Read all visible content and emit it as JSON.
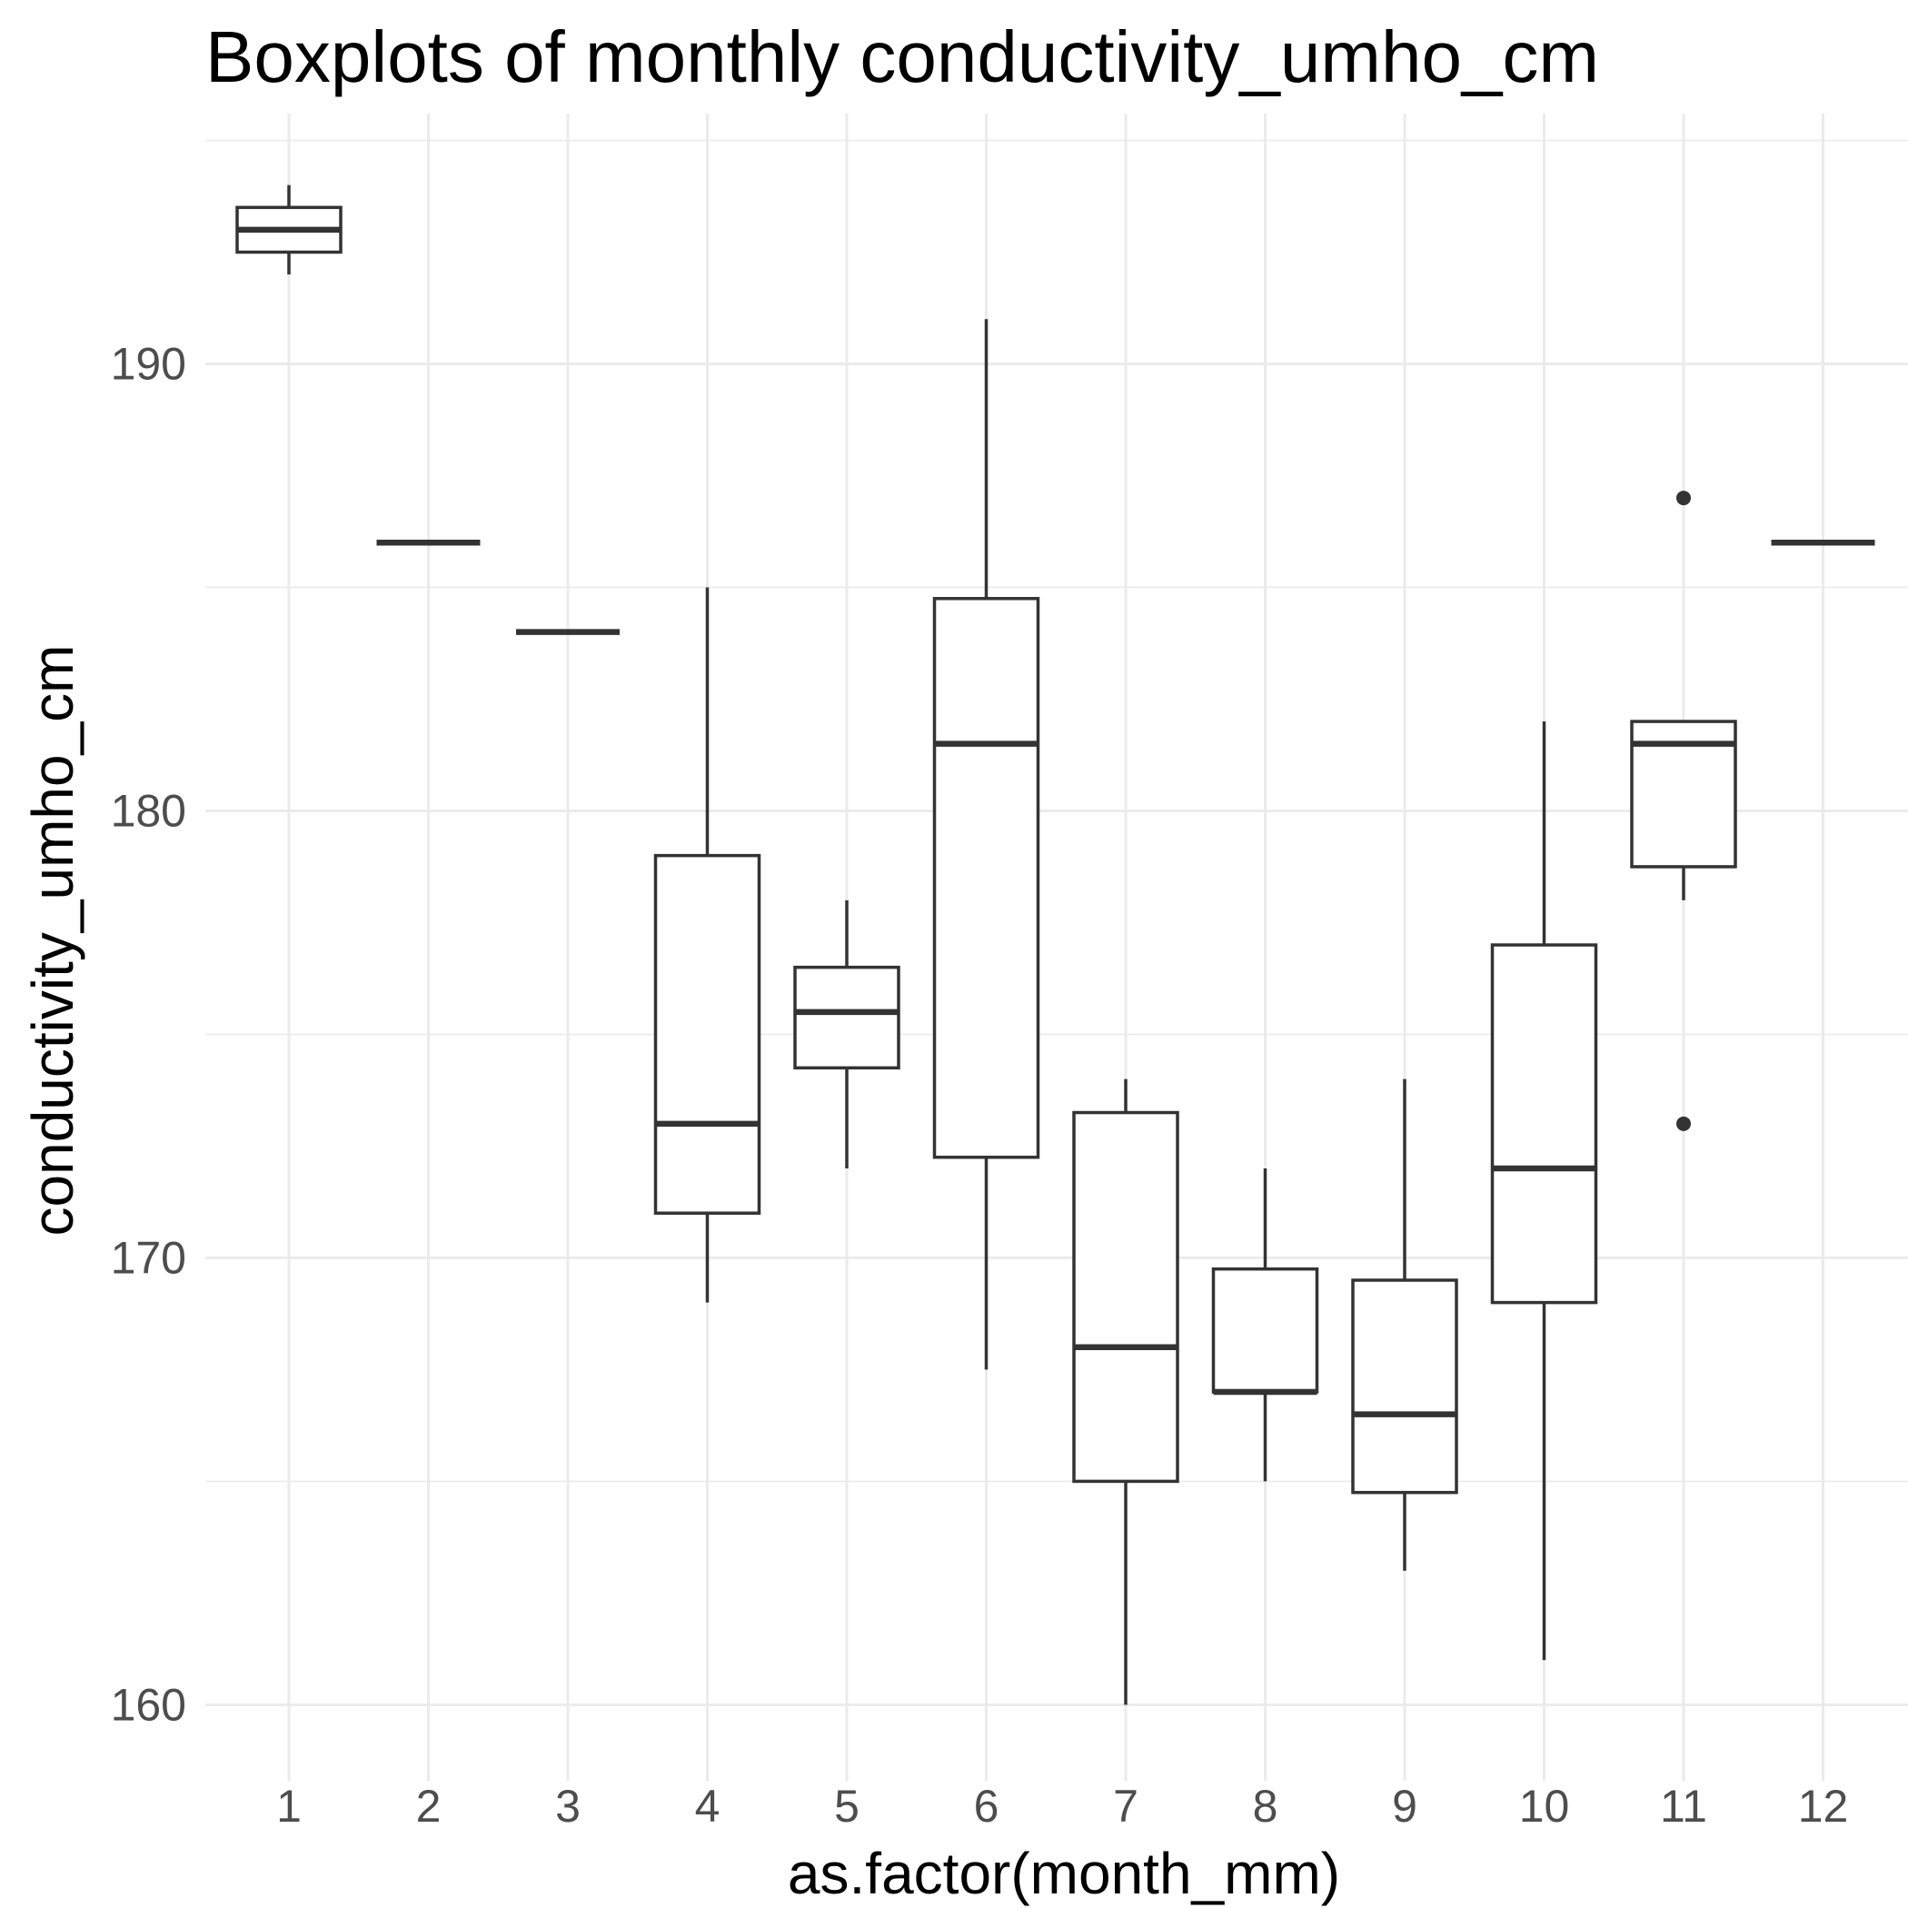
{
  "chart_data": {
    "type": "boxplot",
    "title": "Boxplots of monthly conductivity_umho_cm",
    "xlabel": "as.factor(month_mm)",
    "ylabel": "conductivity_umho_cm",
    "categories": [
      "1",
      "2",
      "3",
      "4",
      "5",
      "6",
      "7",
      "8",
      "9",
      "10",
      "11",
      "12"
    ],
    "ylim": [
      158.3,
      195.6
    ],
    "yticks": [
      160,
      170,
      180,
      190
    ],
    "ytick_labels": [
      "160",
      "170",
      "180",
      "190"
    ],
    "grid": true,
    "legend": "none",
    "line_color": "#333333",
    "fill_color": "#ffffff",
    "grid_color": "#ebebeb",
    "boxes": [
      {
        "category": "1",
        "whisker_low": 192.0,
        "q1": 192.5,
        "median": 193.0,
        "q3": 193.5,
        "whisker_high": 194.0,
        "outliers": []
      },
      {
        "category": "2",
        "whisker_low": 186.0,
        "q1": 186.0,
        "median": 186.0,
        "q3": 186.0,
        "whisker_high": 186.0,
        "outliers": []
      },
      {
        "category": "3",
        "whisker_low": 184.0,
        "q1": 184.0,
        "median": 184.0,
        "q3": 184.0,
        "whisker_high": 184.0,
        "outliers": []
      },
      {
        "category": "4",
        "whisker_low": 169.0,
        "q1": 171.0,
        "median": 173.0,
        "q3": 179.0,
        "whisker_high": 185.0,
        "outliers": []
      },
      {
        "category": "5",
        "whisker_low": 172.0,
        "q1": 174.25,
        "median": 175.5,
        "q3": 176.5,
        "whisker_high": 178.0,
        "outliers": []
      },
      {
        "category": "6",
        "whisker_low": 167.5,
        "q1": 172.25,
        "median": 181.5,
        "q3": 184.75,
        "whisker_high": 191.0,
        "outliers": []
      },
      {
        "category": "7",
        "whisker_low": 160.0,
        "q1": 165.0,
        "median": 168.0,
        "q3": 173.25,
        "whisker_high": 174.0,
        "outliers": []
      },
      {
        "category": "8",
        "whisker_low": 165.0,
        "q1": 167.0,
        "median": 167.0,
        "q3": 169.75,
        "whisker_high": 172.0,
        "outliers": []
      },
      {
        "category": "9",
        "whisker_low": 163.0,
        "q1": 164.75,
        "median": 166.5,
        "q3": 169.5,
        "whisker_high": 174.0,
        "outliers": []
      },
      {
        "category": "10",
        "whisker_low": 161.0,
        "q1": 169.0,
        "median": 172.0,
        "q3": 177.0,
        "whisker_high": 182.0,
        "outliers": []
      },
      {
        "category": "11",
        "whisker_low": 178.0,
        "q1": 178.75,
        "median": 181.5,
        "q3": 182.0,
        "whisker_high": 182.0,
        "outliers": [
          187.0,
          173.0
        ]
      },
      {
        "category": "12",
        "whisker_low": 186.0,
        "q1": 186.0,
        "median": 186.0,
        "q3": 186.0,
        "whisker_high": 186.0,
        "outliers": []
      }
    ]
  }
}
